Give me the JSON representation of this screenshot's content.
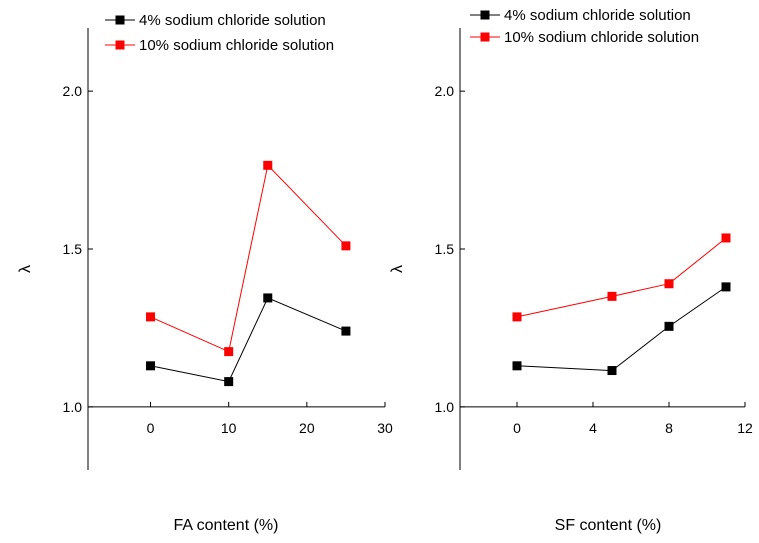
{
  "chart_data": [
    {
      "type": "line",
      "xlabel": "FA content (%)",
      "ylabel": "λ",
      "xlim": [
        -8,
        30
      ],
      "ylim": [
        0.8,
        2.2
      ],
      "xticks": [
        0,
        10,
        20,
        30
      ],
      "yticks": [
        1.0,
        1.5,
        2.0
      ],
      "ytick_labels": [
        "1.0",
        "1.5",
        "2.0"
      ],
      "grid": false,
      "legend_position": "top-left",
      "series": [
        {
          "name": "4% sodium chloride solution",
          "color": "#000000",
          "marker": "square",
          "x": [
            0,
            10,
            15,
            25
          ],
          "y": [
            1.13,
            1.08,
            1.345,
            1.24
          ]
        },
        {
          "name": "10% sodium chloride solution",
          "color": "#ff0000",
          "marker": "square",
          "x": [
            0,
            10,
            15,
            25
          ],
          "y": [
            1.285,
            1.175,
            1.765,
            1.51
          ]
        }
      ]
    },
    {
      "type": "line",
      "xlabel": "SF content (%)",
      "ylabel": "λ",
      "xlim": [
        -3,
        12
      ],
      "ylim": [
        0.8,
        2.2
      ],
      "xticks": [
        0,
        4,
        8,
        12
      ],
      "yticks": [
        1.0,
        1.5,
        2.0
      ],
      "ytick_labels": [
        "1.0",
        "1.5",
        "2.0"
      ],
      "grid": false,
      "legend_position": "top-left",
      "series": [
        {
          "name": "4% sodium chloride solution",
          "color": "#000000",
          "marker": "square",
          "x": [
            0,
            5,
            8,
            11
          ],
          "y": [
            1.13,
            1.115,
            1.255,
            1.38
          ]
        },
        {
          "name": "10% sodium chloride solution",
          "color": "#ff0000",
          "marker": "square",
          "x": [
            0,
            5,
            8,
            11
          ],
          "y": [
            1.285,
            1.35,
            1.39,
            1.535
          ]
        }
      ]
    }
  ]
}
